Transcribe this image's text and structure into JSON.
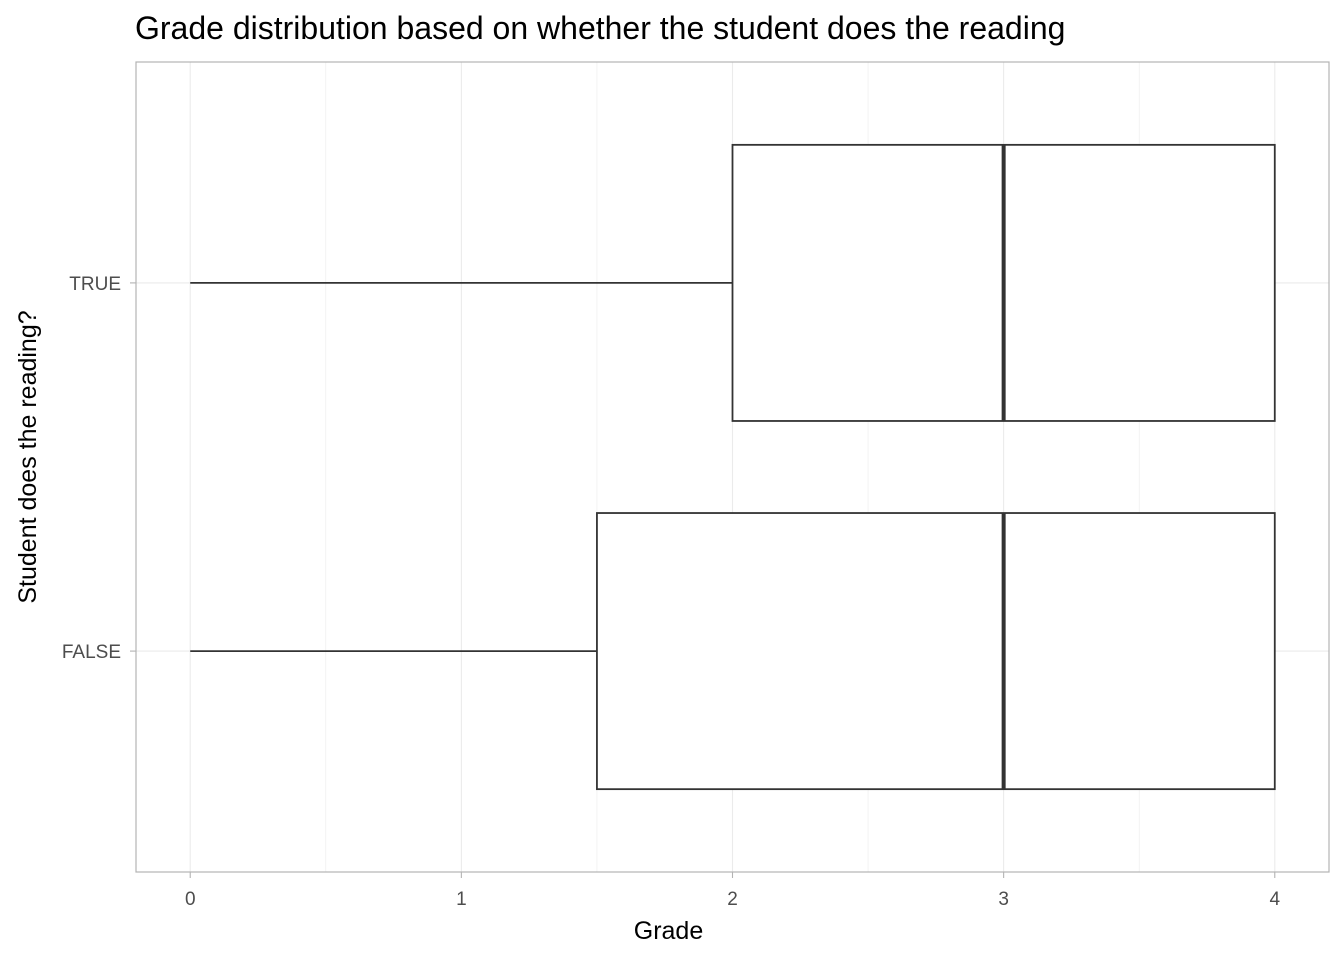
{
  "chart_data": {
    "type": "boxplot",
    "orientation": "horizontal",
    "title": "Grade distribution based on whether the student does the reading",
    "xlabel": "Grade",
    "ylabel": "Student does the reading?",
    "xlim": [
      -0.2,
      4.2
    ],
    "x_ticks": [
      "0",
      "1",
      "2",
      "3",
      "4"
    ],
    "categories": [
      "FALSE",
      "TRUE"
    ],
    "boxes": [
      {
        "category": "FALSE",
        "min": 0,
        "q1": 1.5,
        "median": 3,
        "q3": 4,
        "max": 4
      },
      {
        "category": "TRUE",
        "min": 0,
        "q1": 2,
        "median": 3,
        "q3": 4,
        "max": 4
      }
    ],
    "grid": true,
    "legend": "none",
    "colors": {
      "box_line": "#333333",
      "box_fill": "#ffffff",
      "grid": "#ebebeb",
      "panel_border": "#b3b3b3"
    }
  }
}
